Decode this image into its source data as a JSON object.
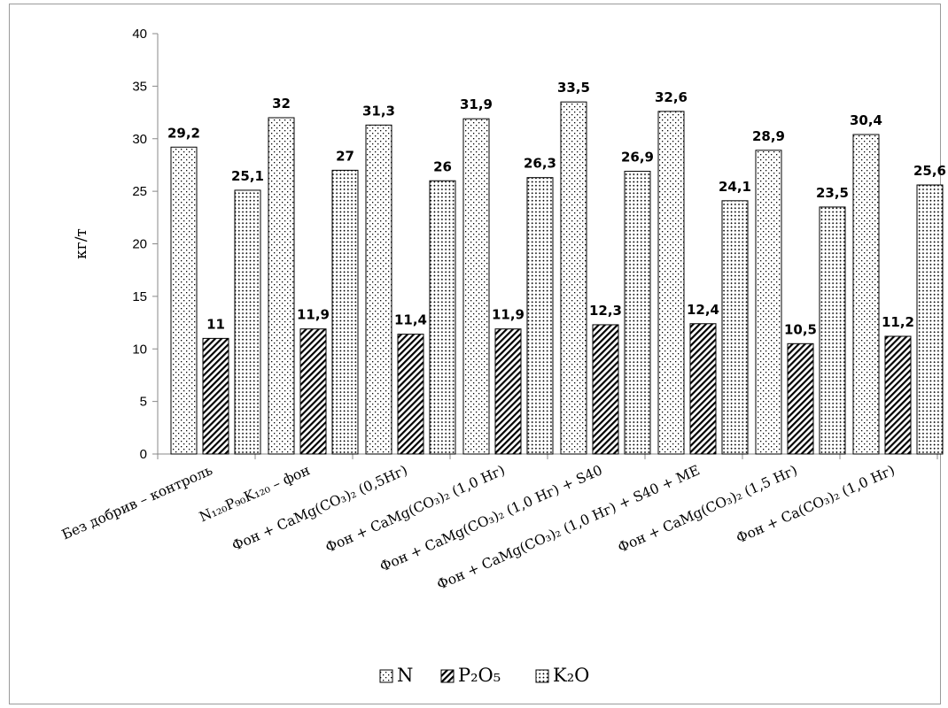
{
  "chart_data": {
    "type": "bar",
    "ylabel": "кг/т",
    "xlabel": "",
    "ylim": [
      0,
      40
    ],
    "yticks": [
      0,
      5,
      10,
      15,
      20,
      25,
      30,
      35,
      40
    ],
    "grid": false,
    "legend_position": "bottom",
    "categories": [
      "Без добрив – контроль",
      "N₁₂₀P₉₀K₁₂₀ – фон",
      "Фон + CaMg(CO₃)₂ (0,5Нг)",
      "Фон + CaMg(CO₃)₂ (1,0 Нг)",
      "Фон + CaMg(CO₃)₂ (1,0 Нг) + S40",
      "Фон + CaMg(CO₃)₂ (1,0 Нг) + S40 + МЕ",
      "Фон + CaMg(CO₃)₂ (1,5 Нг)",
      "Фон + Ca(CO₃)₂ (1,0 Нг)"
    ],
    "series": [
      {
        "name": "N",
        "pattern": "dots",
        "values": [
          29.2,
          32,
          31.3,
          31.9,
          33.5,
          32.6,
          28.9,
          30.4
        ],
        "labels": [
          "29,2",
          "32",
          "31,3",
          "31,9",
          "33,5",
          "32,6",
          "28,9",
          "30,4"
        ]
      },
      {
        "name": "P₂O₅",
        "pattern": "hatch",
        "values": [
          11,
          11.9,
          11.4,
          11.9,
          12.3,
          12.4,
          10.5,
          11.2
        ],
        "labels": [
          "11",
          "11,9",
          "11,4",
          "11,9",
          "12,3",
          "12,4",
          "10,5",
          "11,2"
        ]
      },
      {
        "name": "K₂O",
        "pattern": "checker",
        "values": [
          25.1,
          27,
          26,
          26.3,
          26.9,
          24.1,
          23.5,
          25.6
        ],
        "labels": [
          "25,1",
          "27",
          "26",
          "26,3",
          "26,9",
          "24,1",
          "23,5",
          "25,6"
        ]
      }
    ]
  }
}
